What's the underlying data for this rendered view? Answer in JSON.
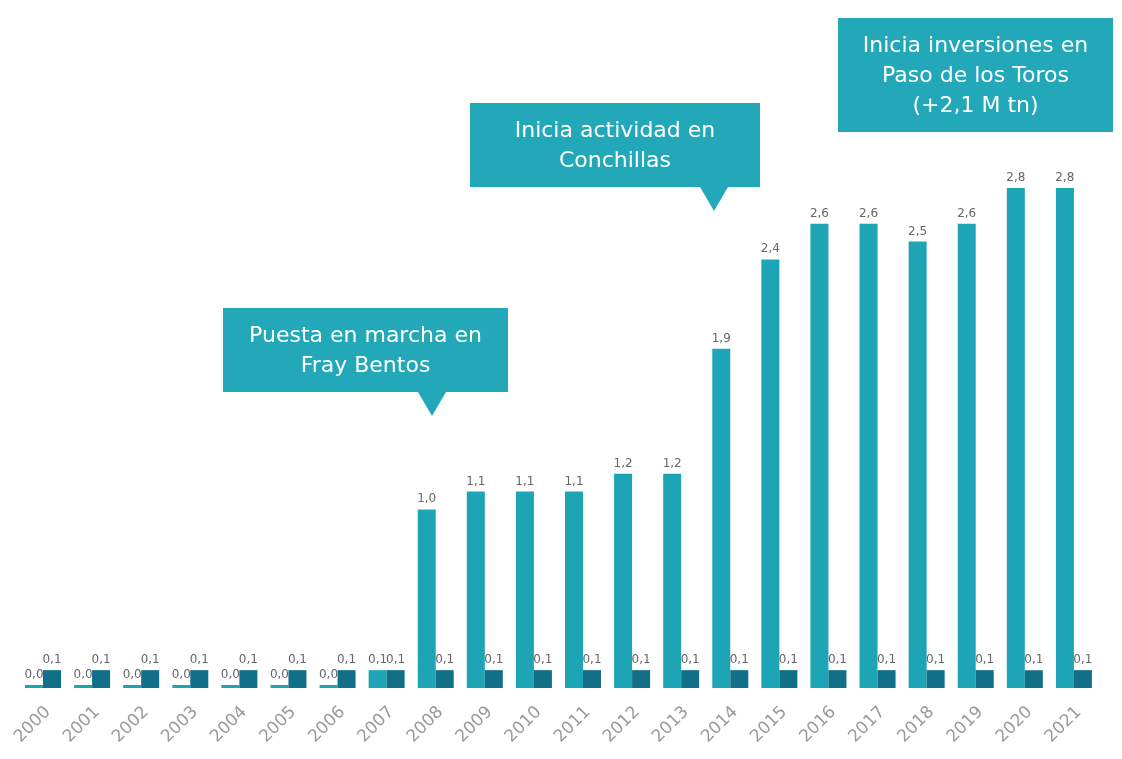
{
  "chart_data": {
    "type": "bar",
    "categories": [
      "2000",
      "2001",
      "2002",
      "2003",
      "2004",
      "2005",
      "2006",
      "2007",
      "2008",
      "2009",
      "2010",
      "2011",
      "2012",
      "2013",
      "2014",
      "2015",
      "2016",
      "2017",
      "2018",
      "2019",
      "2020",
      "2021"
    ],
    "series": [
      {
        "color": "#1ea5b5",
        "values": [
          0.0,
          0.0,
          0.0,
          0.0,
          0.0,
          0.0,
          0.0,
          0.1,
          1.0,
          1.1,
          1.1,
          1.1,
          1.2,
          1.2,
          1.9,
          2.4,
          2.6,
          2.6,
          2.5,
          2.6,
          2.8,
          2.8
        ],
        "value_labels": [
          "0,0",
          "0,0",
          "0,0",
          "0,0",
          "0,0",
          "0,0",
          "0,0",
          "0,1",
          "1,0",
          "1,1",
          "1,1",
          "1,1",
          "1,2",
          "1,2",
          "1,9",
          "2,4",
          "2,6",
          "2,6",
          "2,5",
          "2,6",
          "2,8",
          "2,8"
        ]
      },
      {
        "color": "#116f88",
        "values": [
          0.1,
          0.1,
          0.1,
          0.1,
          0.1,
          0.1,
          0.1,
          0.1,
          0.1,
          0.1,
          0.1,
          0.1,
          0.1,
          0.1,
          0.1,
          0.1,
          0.1,
          0.1,
          0.1,
          0.1,
          0.1,
          0.1
        ],
        "value_labels": [
          "0,1",
          "0,1",
          "0,1",
          "0,1",
          "0,1",
          "0,1",
          "0,1",
          "0,1",
          "0,1",
          "0,1",
          "0,1",
          "0,1",
          "0,1",
          "0,1",
          "0,1",
          "0,1",
          "0,1",
          "0,1",
          "0,1",
          "0,1",
          "0,1",
          "0,1"
        ]
      }
    ],
    "annotations": [
      "Puesta en marcha en Fray Bentos",
      "Inicia actividad en Conchillas",
      "Inicia inversiones en Paso de los Toros (+2,1 M tn)"
    ]
  }
}
